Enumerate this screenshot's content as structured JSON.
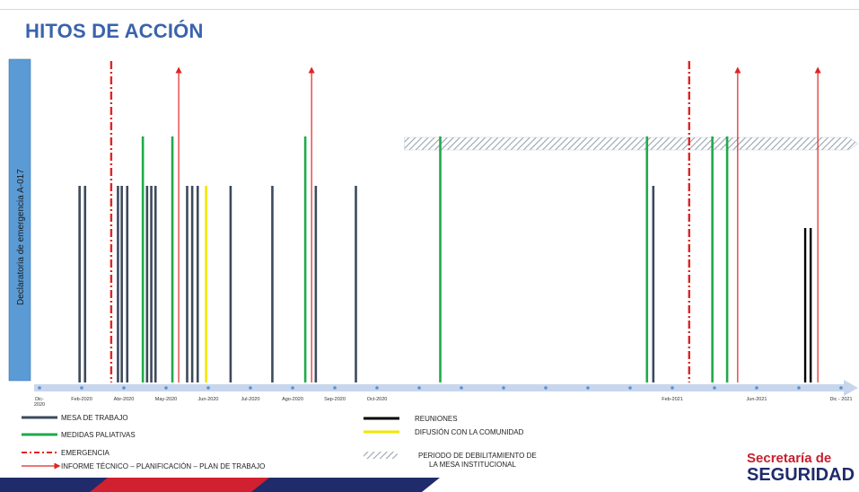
{
  "title": "HITOS DE ACCIÓN",
  "vertical_label": "Declaratoria de emergencia A-017",
  "colors": {
    "mesa": "#3d4a5c",
    "paliativas": "#1faa4a",
    "emergencia": "#e02424",
    "informe": "#e02424",
    "reuniones": "#000000",
    "difusion": "#f2e600",
    "axis": "#c7d6ec",
    "axis_dot": "#5b8fd0",
    "title": "#3a63ad",
    "label_bar": "#5b9bd5"
  },
  "axis": {
    "ticks": [
      "Dic-\n2020",
      "Feb-2020",
      "Abr-2020",
      "May-2020",
      "Jun-2020",
      "Jul-2020",
      "Ago-2020",
      "Sep-2020",
      "Oct-2020",
      "",
      "",
      "",
      "",
      "",
      "",
      "Feb-2021",
      "",
      "Jun-2021",
      "",
      "Dic - 2021"
    ],
    "tick_index_positions": [
      0,
      1,
      2,
      3,
      4,
      5,
      6,
      7,
      8,
      9,
      10,
      11,
      12,
      13,
      14,
      15,
      16,
      17,
      18,
      19
    ]
  },
  "chart_data": {
    "type": "timeline",
    "events": [
      {
        "type": "mesa",
        "t": 0.95,
        "level": "mid"
      },
      {
        "type": "mesa",
        "t": 1.08,
        "level": "mid"
      },
      {
        "type": "emergencia",
        "t": 1.7,
        "level": "top"
      },
      {
        "type": "mesa",
        "t": 1.86,
        "level": "mid"
      },
      {
        "type": "mesa",
        "t": 1.95,
        "level": "mid"
      },
      {
        "type": "mesa",
        "t": 2.08,
        "level": "mid"
      },
      {
        "type": "paliativas",
        "t": 2.45,
        "level": "high"
      },
      {
        "type": "mesa",
        "t": 2.55,
        "level": "mid"
      },
      {
        "type": "mesa",
        "t": 2.65,
        "level": "mid"
      },
      {
        "type": "mesa",
        "t": 2.75,
        "level": "mid"
      },
      {
        "type": "paliativas",
        "t": 3.15,
        "level": "high"
      },
      {
        "type": "informe",
        "t": 3.3,
        "level": "top"
      },
      {
        "type": "mesa",
        "t": 3.5,
        "level": "mid"
      },
      {
        "type": "mesa",
        "t": 3.62,
        "level": "mid"
      },
      {
        "type": "mesa",
        "t": 3.75,
        "level": "mid"
      },
      {
        "type": "difusion",
        "t": 3.95,
        "level": "mid"
      },
      {
        "type": "mesa",
        "t": 4.53,
        "level": "mid"
      },
      {
        "type": "mesa",
        "t": 5.52,
        "level": "mid"
      },
      {
        "type": "paliativas",
        "t": 6.3,
        "level": "high"
      },
      {
        "type": "informe",
        "t": 6.45,
        "level": "top"
      },
      {
        "type": "mesa",
        "t": 6.55,
        "level": "mid"
      },
      {
        "type": "mesa",
        "t": 7.5,
        "level": "mid"
      },
      {
        "type": "paliativas",
        "t": 9.5,
        "level": "high"
      },
      {
        "type": "paliativas",
        "t": 14.4,
        "level": "high"
      },
      {
        "type": "mesa",
        "t": 14.55,
        "level": "mid"
      },
      {
        "type": "emergencia",
        "t": 15.4,
        "level": "top"
      },
      {
        "type": "paliativas",
        "t": 15.95,
        "level": "high"
      },
      {
        "type": "paliativas",
        "t": 16.3,
        "level": "high"
      },
      {
        "type": "informe",
        "t": 16.55,
        "level": "top"
      },
      {
        "type": "reuniones",
        "t": 18.15,
        "level": "low"
      },
      {
        "type": "reuniones",
        "t": 18.28,
        "level": "low"
      },
      {
        "type": "informe",
        "t": 18.45,
        "level": "top"
      }
    ],
    "period": {
      "type": "debilitamiento",
      "start": 8.65,
      "end": 19.4
    }
  },
  "legend": [
    {
      "type": "mesa",
      "label": "MESA DE TRABAJO"
    },
    {
      "type": "paliativas",
      "label": "MEDIDAS PALIATIVAS"
    },
    {
      "type": "emergencia",
      "label": "EMERGENCIA"
    },
    {
      "type": "informe",
      "label": "INFORME TÉCNICO – PLANIFICACIÓN – PLAN DE TRABAJO"
    },
    {
      "type": "reuniones",
      "label": "REUNIONES"
    },
    {
      "type": "difusion",
      "label": "DIFUSIÓN CON LA COMUNIDAD"
    },
    {
      "type": "periodo",
      "label": "PERIODO DE DEBILITAMIENTO DE",
      "label2": "LA MESA INSTITUCIONAL"
    }
  ],
  "brand": {
    "line1": "Secretaría de",
    "line2": "SEGURIDAD"
  }
}
